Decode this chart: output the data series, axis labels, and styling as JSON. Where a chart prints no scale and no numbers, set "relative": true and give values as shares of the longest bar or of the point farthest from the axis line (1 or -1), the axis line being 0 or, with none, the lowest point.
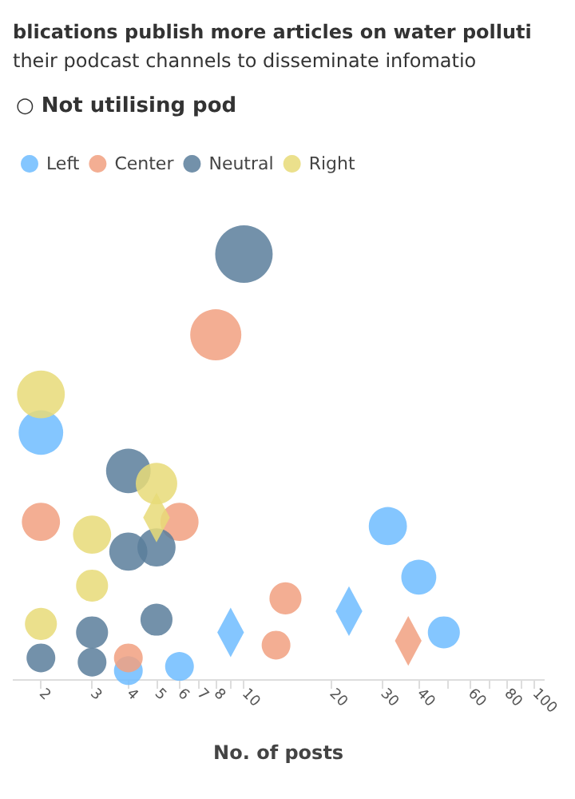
{
  "chart_data": {
    "type": "bubble",
    "title": "blications publish more articles on water polluti",
    "subtitle": "their podcast channels to disseminate infomatio",
    "annotations": [
      "○ Not utilising pod"
    ],
    "xlabel": "No. of posts",
    "log": "x",
    "relative": true,
    "legend": "top left",
    "grid": false,
    "marker": "circle",
    "xlim": [
      1.6,
      108
    ],
    "xticks": [
      2,
      3,
      4,
      5,
      6,
      7,
      8,
      {
        "value": 9,
        "label": null
      },
      10,
      20,
      30,
      40,
      {
        "value": 50,
        "label": null
      },
      60,
      {
        "value": 70,
        "label": null
      },
      80,
      {
        "value": 90,
        "label": null
      },
      100
    ],
    "series": [
      {
        "name": "Left",
        "color": "#6ebcff",
        "x": [
          2,
          31.3,
          40,
          48.8,
          6,
          4
        ],
        "values": [
          0.58,
          0.36,
          0.24,
          0.11,
          0.03,
          0.02
        ],
        "sizes": [
          0.6,
          0.44,
          0.37,
          0.31,
          0.25,
          0.25
        ]
      },
      {
        "name": "Center",
        "color": "#f1a080",
        "x": [
          8,
          2,
          6,
          13.9,
          12.9,
          4
        ],
        "values": [
          0.81,
          0.37,
          0.37,
          0.19,
          0.08,
          0.05
        ],
        "sizes": [
          0.79,
          0.44,
          0.44,
          0.31,
          0.25,
          0.25
        ]
      },
      {
        "name": "Neutral",
        "color": "#5a7e9b",
        "x": [
          10,
          4,
          4,
          5,
          5,
          3,
          3,
          2
        ],
        "values": [
          1,
          0.49,
          0.3,
          0.31,
          0.14,
          0.11,
          0.04,
          0.05
        ],
        "sizes": [
          1,
          0.6,
          0.44,
          0.44,
          0.31,
          0.31,
          0.25,
          0.25
        ]
      },
      {
        "name": "Right",
        "color": "#e8da78",
        "x": [
          2,
          5,
          3,
          3,
          2
        ],
        "values": [
          0.67,
          0.46,
          0.34,
          0.22,
          0.13
        ],
        "sizes": [
          0.69,
          0.52,
          0.44,
          0.31,
          0.31
        ]
      },
      {
        "color": "#6ebcff",
        "marker": "diamond",
        "x": [
          9,
          23
        ],
        "values": [
          0.11,
          0.16
        ],
        "sizes": [
          0.26,
          0.26
        ]
      },
      {
        "color": "#f1a080",
        "marker": "diamond",
        "x": [
          36.8
        ],
        "values": [
          0.09
        ],
        "sizes": [
          0.26
        ]
      },
      {
        "color": "#e8da78",
        "marker": "diamond",
        "x": [
          5
        ],
        "values": [
          0.38
        ],
        "sizes": [
          0.26
        ]
      }
    ]
  }
}
